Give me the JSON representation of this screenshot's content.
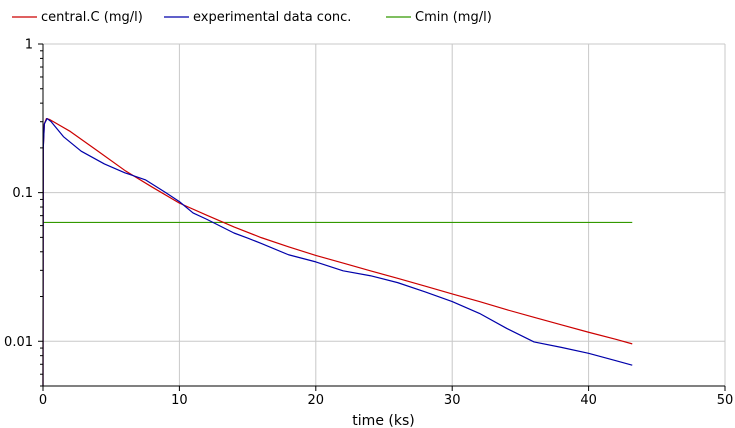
{
  "chart_data": {
    "type": "line",
    "title": "",
    "xlabel": "time (ks)",
    "ylabel": "",
    "xscale": "linear",
    "yscale": "log",
    "xlim": [
      0,
      50
    ],
    "ylim": [
      0.005,
      1
    ],
    "x_ticks": [
      0,
      10,
      20,
      30,
      40,
      50
    ],
    "x_tick_labels": [
      "0",
      "10",
      "20",
      "30",
      "40",
      "50"
    ],
    "y_ticks": [
      0.01,
      0.1,
      1
    ],
    "y_tick_labels": [
      "0.01",
      "0.1",
      "1"
    ],
    "grid": true,
    "legend_position": "top-left",
    "series": [
      {
        "name": "central.C (mg/l)",
        "color": "#cc0000",
        "points": [
          [
            0,
            0.005
          ],
          [
            0.02,
            0.2
          ],
          [
            0.1,
            0.29
          ],
          [
            0.25,
            0.315
          ],
          [
            0.5,
            0.31
          ],
          [
            2,
            0.258
          ],
          [
            4,
            0.191
          ],
          [
            6,
            0.141
          ],
          [
            8,
            0.109
          ],
          [
            10,
            0.085
          ],
          [
            12,
            0.0705
          ],
          [
            14,
            0.0588
          ],
          [
            16,
            0.0498
          ],
          [
            18,
            0.0432
          ],
          [
            20,
            0.0378
          ],
          [
            22,
            0.0336
          ],
          [
            24,
            0.0298
          ],
          [
            26,
            0.0265
          ],
          [
            28,
            0.0235
          ],
          [
            30,
            0.0208
          ],
          [
            32,
            0.0185
          ],
          [
            34,
            0.0163
          ],
          [
            36,
            0.0145
          ],
          [
            38,
            0.0129
          ],
          [
            40,
            0.0115
          ],
          [
            42,
            0.0103
          ],
          [
            43.2,
            0.0096
          ]
        ]
      },
      {
        "name": "experimental data conc.",
        "color": "#0000aa",
        "points": [
          [
            0,
            0.005
          ],
          [
            0.02,
            0.2
          ],
          [
            0.1,
            0.29
          ],
          [
            0.3,
            0.315
          ],
          [
            0.6,
            0.3
          ],
          [
            1.5,
            0.238
          ],
          [
            2.8,
            0.19
          ],
          [
            4.5,
            0.156
          ],
          [
            6,
            0.136
          ],
          [
            7.5,
            0.122
          ],
          [
            9,
            0.1
          ],
          [
            10,
            0.087
          ],
          [
            11,
            0.073
          ],
          [
            12,
            0.0662
          ],
          [
            13,
            0.0595
          ],
          [
            14,
            0.0535
          ],
          [
            15,
            0.0495
          ],
          [
            16,
            0.0455
          ],
          [
            18,
            0.0382
          ],
          [
            20,
            0.0342
          ],
          [
            22,
            0.0298
          ],
          [
            24,
            0.0276
          ],
          [
            26,
            0.0248
          ],
          [
            28,
            0.0215
          ],
          [
            30,
            0.0185
          ],
          [
            32,
            0.0154
          ],
          [
            34,
            0.0122
          ],
          [
            36,
            0.0099
          ],
          [
            38,
            0.0091
          ],
          [
            40,
            0.0083
          ],
          [
            42,
            0.0074
          ],
          [
            43.2,
            0.0069
          ]
        ]
      },
      {
        "name": "Cmin (mg/l)",
        "color": "#339900",
        "points": [
          [
            0,
            0.063
          ],
          [
            43.2,
            0.063
          ]
        ]
      }
    ]
  }
}
